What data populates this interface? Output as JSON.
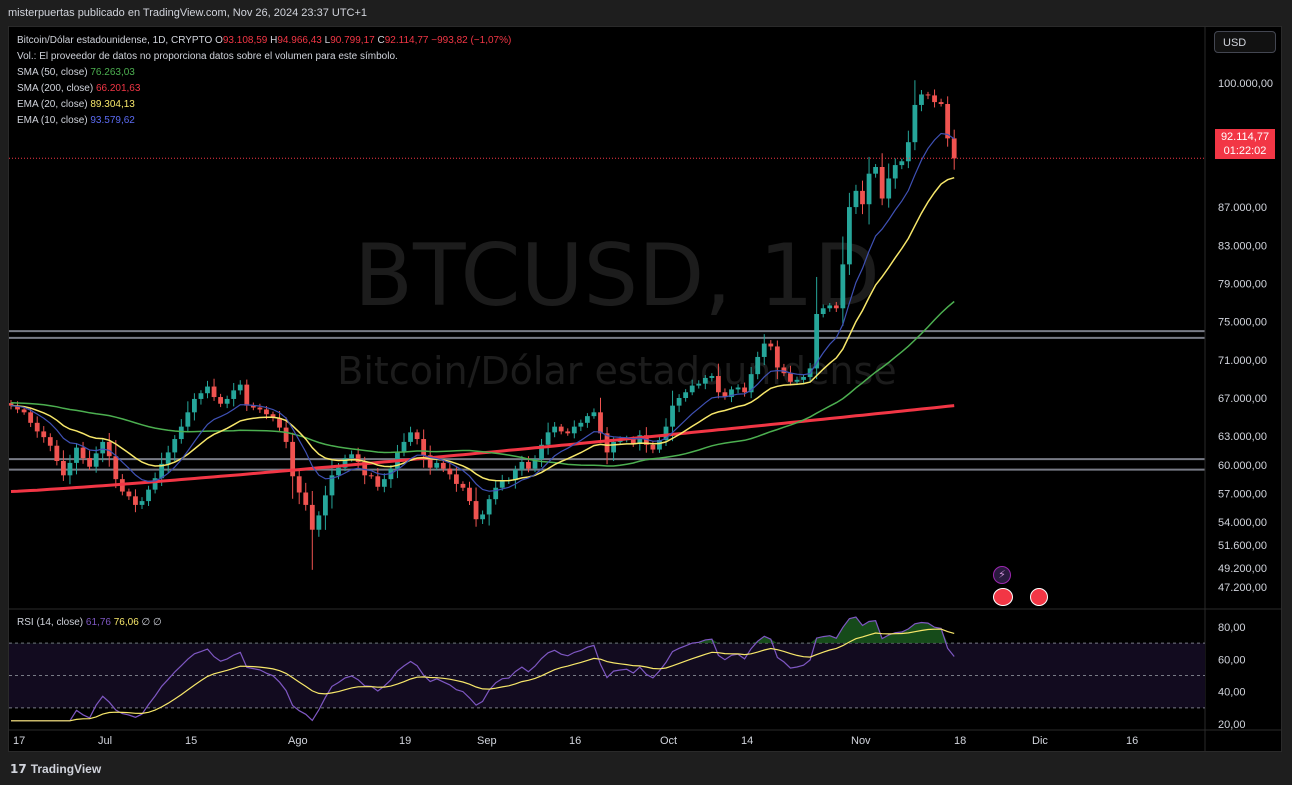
{
  "header": {
    "publisher": "misterpuertas publicado en TradingView.com, Nov 26, 2024 23:37 UTC+1"
  },
  "symbol": {
    "name": "Bitcoin/Dólar estadounidense, 1D, CRYPTO",
    "o_label": "O",
    "o_value": "93.108,59",
    "h_label": "H",
    "h_value": "94.966,43",
    "l_label": "L",
    "l_value": "90.799,17",
    "c_label": "C",
    "c_value": "92.114,77",
    "change": "−993,82 (−1,07%)",
    "volume_note": "Vol.: El proveedor de datos no proporciona datos sobre el volumen para este símbolo."
  },
  "indicators": [
    {
      "label": "SMA (50, close)",
      "value": "76.263,03",
      "color": "#4caf50"
    },
    {
      "label": "SMA (200, close)",
      "value": "66.201,63",
      "color": "#f23645"
    },
    {
      "label": "EMA (20, close)",
      "value": "89.304,13",
      "color": "#f7e76a"
    },
    {
      "label": "EMA (10, close)",
      "value": "93.579,62",
      "color": "#5c6bf2"
    }
  ],
  "currency": "USD",
  "last_price": {
    "value": "92.114,77",
    "countdown": "01:22:02"
  },
  "watermark": {
    "ticker": "BTCUSD, 1D",
    "name": "Bitcoin/Dólar estadounidense"
  },
  "rsi": {
    "label": "RSI (14, close)",
    "value": "61,76",
    "ma_value": "76,06",
    "extra1": "∅",
    "extra2": "∅"
  },
  "brand": {
    "name": "TradingView"
  },
  "chart_data": [
    {
      "type": "candlestick",
      "title": "Bitcoin/Dólar estadounidense, 1D, CRYPTO",
      "y_ticks": [
        "100.000,00",
        "87.000,00",
        "83.000,00",
        "79.000,00",
        "75.000,00",
        "71.000,00",
        "67.000,00",
        "63.000,00",
        "60.000,00",
        "57.000,00",
        "54.000,00",
        "51.600,00",
        "49.200,00",
        "47.200,00"
      ],
      "y_tick_values": [
        100000,
        87000,
        83000,
        79000,
        75000,
        71000,
        67000,
        63000,
        60000,
        57000,
        54000,
        51600,
        49200,
        47200
      ],
      "x_ticks": [
        "17",
        "Jul",
        "15",
        "Ago",
        "19",
        "Sep",
        "16",
        "Oct",
        "14",
        "Nov",
        "18",
        "Dic",
        "16"
      ],
      "horizontal_levels": [
        74000,
        73300,
        60600,
        59500
      ],
      "closes": [
        66200,
        65800,
        65500,
        64400,
        63500,
        62900,
        62000,
        60400,
        58900,
        60200,
        61800,
        60700,
        59800,
        61200,
        62400,
        60900,
        58500,
        57200,
        56700,
        55800,
        56200,
        57400,
        58600,
        60100,
        61300,
        62700,
        64000,
        65500,
        66900,
        67500,
        68200,
        67100,
        66400,
        66900,
        67800,
        68400,
        66200,
        66000,
        65800,
        65300,
        64900,
        63900,
        62400,
        58800,
        57100,
        55800,
        53200,
        54700,
        56800,
        58900,
        59700,
        60700,
        61100,
        60300,
        58900,
        58800,
        57700,
        58500,
        59600,
        61300,
        62400,
        63400,
        62700,
        61000,
        59700,
        60200,
        59600,
        59000,
        58000,
        57600,
        56200,
        54300,
        54800,
        56400,
        57600,
        58300,
        58400,
        59500,
        60300,
        59600,
        60600,
        62100,
        63400,
        64000,
        63500,
        63300,
        64000,
        64400,
        65100,
        65500,
        63300,
        61300,
        62400,
        62600,
        62700,
        62200,
        63100,
        62100,
        61600,
        62600,
        64000,
        66200,
        67000,
        67600,
        68300,
        68500,
        69100,
        69300,
        67600,
        67100,
        67900,
        68100,
        67600,
        69500,
        71300,
        72700,
        72400,
        70200,
        69600,
        68700,
        68900,
        69200,
        70100,
        75800,
        76400,
        76700,
        76400,
        81000,
        87000,
        88700,
        87300,
        90500,
        91200,
        87900,
        90000,
        91400,
        91800,
        93800,
        97700,
        98800,
        98700,
        98000,
        97800,
        94200,
        92100
      ],
      "sma50": {
        "label": "SMA (50, close)",
        "last": "76.263,03"
      },
      "sma200": {
        "label": "SMA (200, close)",
        "last": "66.201,63"
      },
      "ema20": {
        "label": "EMA (20, close)",
        "last": "89.304,13"
      },
      "ema10": {
        "label": "EMA (10, close)",
        "last": "93.579,62"
      },
      "last_price": 92114.77
    },
    {
      "type": "line",
      "title": "RSI (14, close)",
      "y_ticks": [
        "80,00",
        "60,00",
        "40,00",
        "20,00"
      ],
      "y_tick_values": [
        80,
        60,
        40,
        20
      ],
      "levels": [
        70,
        50,
        30
      ],
      "rsi_last": 61.76,
      "rsi_ma_last": 76.06
    }
  ]
}
